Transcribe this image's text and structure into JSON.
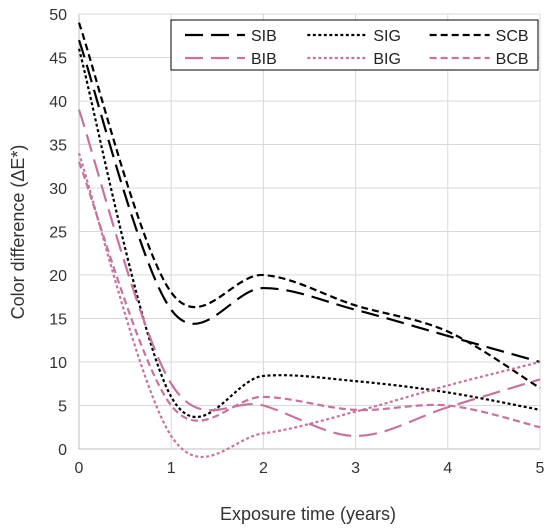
{
  "chart_data": {
    "type": "line",
    "title": "",
    "xlabel": "Exposure time (years)",
    "ylabel": "Color difference (ΔE*)",
    "xlim": [
      0,
      5
    ],
    "ylim": [
      0,
      50
    ],
    "x_ticks": [
      "0",
      "1",
      "2",
      "3",
      "4",
      "5"
    ],
    "y_ticks": [
      "0",
      "5",
      "10",
      "15",
      "20",
      "25",
      "30",
      "35",
      "40",
      "45",
      "50"
    ],
    "grid": true,
    "legend_position": "top-right",
    "x": [
      0,
      1,
      2,
      3,
      4,
      5
    ],
    "series": [
      {
        "name": "SIB",
        "color": "#000000",
        "dash": "long-dash",
        "values": [
          47,
          16,
          18.5,
          16,
          13,
          10
        ]
      },
      {
        "name": "SIG",
        "color": "#000000",
        "dash": "dot",
        "values": [
          46,
          6,
          8.4,
          7.8,
          6.5,
          4.5
        ]
      },
      {
        "name": "SCB",
        "color": "#000000",
        "dash": "short-dash",
        "values": [
          49,
          18,
          20,
          16.5,
          13.5,
          7
        ]
      },
      {
        "name": "BIB",
        "color": "#C7729F",
        "dash": "long-dash",
        "values": [
          39,
          7.5,
          5,
          1.5,
          4.8,
          8
        ]
      },
      {
        "name": "BIG",
        "color": "#C7729F",
        "dash": "dot",
        "values": [
          34,
          1.5,
          1.8,
          4.3,
          7.3,
          10
        ]
      },
      {
        "name": "BCB",
        "color": "#C7729F",
        "dash": "short-dash",
        "values": [
          33,
          5,
          6,
          4.5,
          5,
          2.5
        ]
      }
    ]
  }
}
